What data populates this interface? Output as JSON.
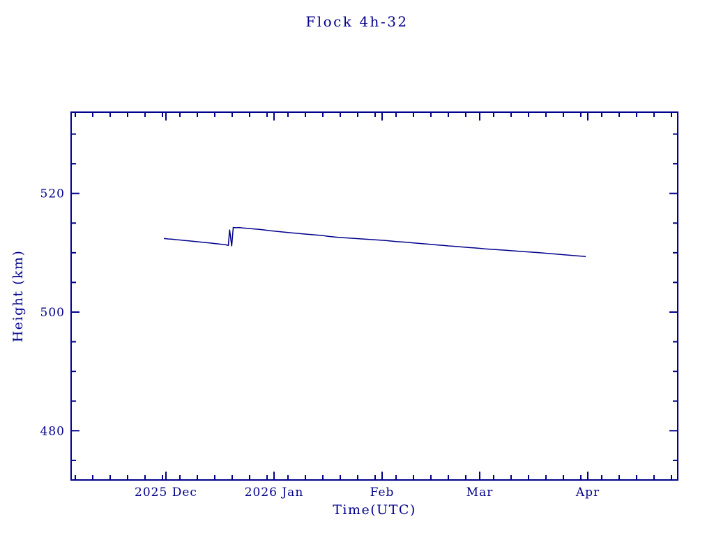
{
  "title": "Flock 4h-32",
  "colors": {
    "line": "#00008b",
    "axis": "#00008b",
    "text": "#00008b",
    "background": "#ffffff"
  },
  "chart_data": {
    "type": "line",
    "title": "Flock 4h-32",
    "xlabel": "Time(UTC)",
    "ylabel": "Height (km)",
    "x_unit": "days since 2025-11-01",
    "xlim": [
      2.8,
      176.8
    ],
    "ylim": [
      471.7,
      533.7
    ],
    "grid": false,
    "legend": "none",
    "x_major_ticks": [
      {
        "day": 30,
        "label": "2025 Dec"
      },
      {
        "day": 61,
        "label": "2026 Jan"
      },
      {
        "day": 92,
        "label": "Feb"
      },
      {
        "day": 120,
        "label": "Mar"
      },
      {
        "day": 151,
        "label": "Apr"
      }
    ],
    "x_minor_days": [
      4,
      9,
      14,
      19,
      24,
      29,
      34,
      39,
      44,
      49,
      54,
      59,
      65,
      70,
      75,
      80,
      85,
      90,
      96,
      101,
      106,
      111,
      116,
      124,
      129,
      134,
      139,
      144,
      149,
      155,
      160,
      165,
      170,
      175
    ],
    "y_major_ticks": [
      {
        "value": 480,
        "label": "480"
      },
      {
        "value": 500,
        "label": "500"
      },
      {
        "value": 520,
        "label": "520"
      }
    ],
    "y_minor_values": [
      475,
      485,
      490,
      495,
      505,
      510,
      515,
      525,
      530
    ],
    "series": [
      {
        "name": "height",
        "color": "#00008b",
        "points": [
          [
            29.4,
            512.4
          ],
          [
            30.6,
            512.33
          ],
          [
            31.8,
            512.28
          ],
          [
            33.0,
            512.2
          ],
          [
            34.2,
            512.14
          ],
          [
            35.4,
            512.06
          ],
          [
            36.6,
            512.0
          ],
          [
            37.8,
            511.93
          ],
          [
            39.0,
            511.86
          ],
          [
            40.2,
            511.79
          ],
          [
            41.4,
            511.72
          ],
          [
            42.6,
            511.65
          ],
          [
            43.8,
            511.57
          ],
          [
            45.0,
            511.5
          ],
          [
            46.0,
            511.42
          ],
          [
            47.0,
            511.35
          ],
          [
            47.9,
            511.25
          ],
          [
            48.25,
            513.9
          ],
          [
            48.55,
            512.5
          ],
          [
            48.85,
            511.1
          ],
          [
            49.3,
            514.25
          ],
          [
            50.0,
            514.22
          ],
          [
            51.0,
            514.25
          ],
          [
            52.0,
            514.18
          ],
          [
            53.0,
            514.14
          ],
          [
            54.0,
            514.08
          ],
          [
            55.5,
            514.0
          ],
          [
            57.0,
            513.92
          ],
          [
            58.5,
            513.82
          ],
          [
            60.0,
            513.72
          ],
          [
            61.5,
            513.62
          ],
          [
            63.0,
            513.54
          ],
          [
            64.5,
            513.45
          ],
          [
            66.0,
            513.36
          ],
          [
            67.5,
            513.28
          ],
          [
            69.0,
            513.2
          ],
          [
            70.5,
            513.12
          ],
          [
            72.0,
            513.04
          ],
          [
            73.5,
            512.97
          ],
          [
            75.0,
            512.9
          ],
          [
            76.5,
            512.78
          ],
          [
            78.0,
            512.68
          ],
          [
            79.5,
            512.6
          ],
          [
            81.0,
            512.54
          ],
          [
            82.5,
            512.48
          ],
          [
            84.0,
            512.42
          ],
          [
            85.5,
            512.36
          ],
          [
            87.0,
            512.3
          ],
          [
            88.5,
            512.24
          ],
          [
            90.0,
            512.19
          ],
          [
            91.5,
            512.13
          ],
          [
            93.0,
            512.06
          ],
          [
            94.5,
            511.98
          ],
          [
            96.0,
            511.9
          ],
          [
            97.5,
            511.83
          ],
          [
            99.0,
            511.76
          ],
          [
            100.5,
            511.68
          ],
          [
            102.0,
            511.61
          ],
          [
            103.5,
            511.54
          ],
          [
            105.0,
            511.46
          ],
          [
            106.5,
            511.39
          ],
          [
            108.0,
            511.31
          ],
          [
            109.5,
            511.24
          ],
          [
            111.0,
            511.16
          ],
          [
            112.5,
            511.1
          ],
          [
            114.0,
            511.03
          ],
          [
            115.5,
            510.95
          ],
          [
            117.0,
            510.87
          ],
          [
            118.5,
            510.81
          ],
          [
            120.0,
            510.74
          ],
          [
            121.5,
            510.66
          ],
          [
            123.0,
            510.6
          ],
          [
            124.5,
            510.54
          ],
          [
            126.0,
            510.47
          ],
          [
            127.5,
            510.41
          ],
          [
            129.0,
            510.35
          ],
          [
            130.5,
            510.28
          ],
          [
            132.0,
            510.22
          ],
          [
            133.5,
            510.16
          ],
          [
            135.0,
            510.1
          ],
          [
            136.5,
            510.04
          ],
          [
            138.0,
            509.97
          ],
          [
            139.5,
            509.9
          ],
          [
            141.0,
            509.82
          ],
          [
            142.5,
            509.74
          ],
          [
            144.0,
            509.67
          ],
          [
            145.5,
            509.6
          ],
          [
            147.0,
            509.52
          ],
          [
            148.5,
            509.45
          ],
          [
            149.6,
            509.4
          ],
          [
            150.4,
            509.35
          ]
        ]
      }
    ]
  }
}
